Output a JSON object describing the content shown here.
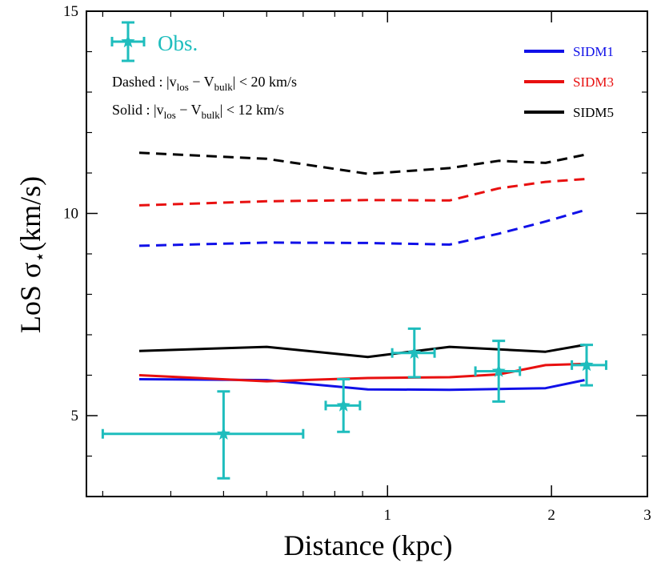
{
  "chart_data": {
    "type": "line",
    "xlabel": "Distance (kpc)",
    "ylabel_parts": {
      "prefix": "LoS σ",
      "subscript": "⋆",
      "suffix": "(km/s)"
    },
    "xscale": "log",
    "xlim": [
      0.28,
      3.0
    ],
    "ylim": [
      3,
      15
    ],
    "x_ticks": [
      {
        "value": 1,
        "label": "1"
      },
      {
        "value": 2,
        "label": "2"
      },
      {
        "value": 3,
        "label": "3"
      }
    ],
    "x_minor_ticks": [
      0.3,
      0.4,
      0.5,
      0.6,
      0.7,
      0.8,
      0.9
    ],
    "y_ticks": [
      {
        "value": 5,
        "label": "5"
      },
      {
        "value": 10,
        "label": "10"
      },
      {
        "value": 15,
        "label": "15"
      }
    ],
    "y_minor_ticks": [
      4,
      6,
      7,
      8,
      9,
      11,
      12,
      13,
      14
    ],
    "legend": {
      "placement": "top-right",
      "entries": [
        {
          "label": "SIDM1",
          "color": "#1010e8"
        },
        {
          "label": "SIDM3",
          "color": "#e81010"
        },
        {
          "label": "SIDM5",
          "color": "#000000"
        }
      ]
    },
    "annotations": {
      "dashed": {
        "lead": "Dashed : |v",
        "sub1": "los",
        "mid": " − V",
        "sub2": "bulk",
        "tail": "| < 20 km/s"
      },
      "solid": {
        "lead": "Solid : |v",
        "sub1": "los",
        "mid": " − V",
        "sub2": "bulk",
        "tail": "| < 12 km/s"
      }
    },
    "series": [
      {
        "name": "SIDM1",
        "style": "dashed",
        "color": "#1010e8",
        "x": [
          0.35,
          0.6,
          0.92,
          1.3,
          1.6,
          1.95,
          2.3
        ],
        "y": [
          9.2,
          9.28,
          9.27,
          9.23,
          9.5,
          9.8,
          10.08
        ]
      },
      {
        "name": "SIDM3",
        "style": "dashed",
        "color": "#e81010",
        "x": [
          0.35,
          0.6,
          0.92,
          1.3,
          1.6,
          1.95,
          2.3
        ],
        "y": [
          10.2,
          10.3,
          10.33,
          10.32,
          10.62,
          10.78,
          10.85
        ]
      },
      {
        "name": "SIDM5",
        "style": "dashed",
        "color": "#000000",
        "x": [
          0.35,
          0.6,
          0.92,
          1.3,
          1.6,
          1.95,
          2.3
        ],
        "y": [
          11.5,
          11.35,
          10.98,
          11.12,
          11.3,
          11.25,
          11.45
        ]
      },
      {
        "name": "SIDM1",
        "style": "solid",
        "color": "#1010e8",
        "x": [
          0.35,
          0.6,
          0.92,
          1.3,
          1.6,
          1.95,
          2.3
        ],
        "y": [
          5.9,
          5.88,
          5.65,
          5.64,
          5.66,
          5.68,
          5.88
        ]
      },
      {
        "name": "SIDM3",
        "style": "solid",
        "color": "#e81010",
        "x": [
          0.35,
          0.6,
          0.92,
          1.3,
          1.6,
          1.95,
          2.3
        ],
        "y": [
          6.0,
          5.85,
          5.93,
          5.95,
          6.02,
          6.25,
          6.28
        ]
      },
      {
        "name": "SIDM5",
        "style": "solid",
        "color": "#000000",
        "x": [
          0.35,
          0.6,
          0.92,
          1.1,
          1.3,
          1.95,
          2.3
        ],
        "y": [
          6.6,
          6.7,
          6.45,
          6.58,
          6.7,
          6.58,
          6.75
        ]
      }
    ],
    "observations": {
      "label": "Obs.",
      "color": "#1ebdbd",
      "points": [
        {
          "x": 0.5,
          "y": 4.55,
          "xlo": 0.3,
          "xhi": 0.7,
          "ylo": 3.45,
          "yhi": 5.6
        },
        {
          "x": 0.83,
          "y": 5.25,
          "xlo": 0.77,
          "xhi": 0.89,
          "ylo": 4.6,
          "yhi": 5.9
        },
        {
          "x": 1.12,
          "y": 6.55,
          "xlo": 1.02,
          "xhi": 1.22,
          "ylo": 5.95,
          "yhi": 7.15
        },
        {
          "x": 1.6,
          "y": 6.1,
          "xlo": 1.45,
          "xhi": 1.75,
          "ylo": 5.35,
          "yhi": 6.85
        },
        {
          "x": 2.32,
          "y": 6.25,
          "xlo": 2.18,
          "xhi": 2.52,
          "ylo": 5.75,
          "yhi": 6.75
        }
      ]
    }
  }
}
